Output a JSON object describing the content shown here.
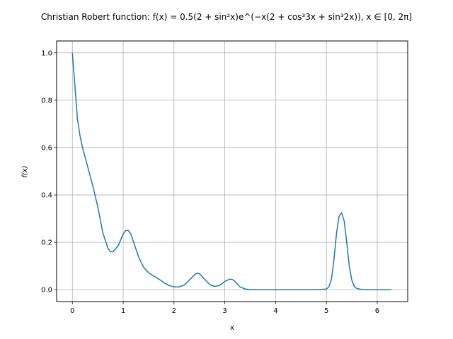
{
  "chart_data": {
    "type": "line",
    "title": "Christian Robert function: f(x) = 0.5(2 + sin²x)e^(−x(2 + cos³3x + sin³2x)),   x ∈ [0, 2π]",
    "xlabel": "x",
    "ylabel": "f(x)",
    "xlim": [
      -0.31,
      6.6
    ],
    "ylim": [
      -0.05,
      1.05
    ],
    "x_ticks": [
      0,
      1,
      2,
      3,
      4,
      5,
      6
    ],
    "x_tick_labels": [
      "0",
      "1",
      "2",
      "3",
      "4",
      "5",
      "6"
    ],
    "y_ticks": [
      0.0,
      0.2,
      0.4,
      0.6,
      0.8,
      1.0
    ],
    "y_tick_labels": [
      "0.0",
      "0.2",
      "0.4",
      "0.6",
      "0.8",
      "1.0"
    ],
    "grid": true,
    "legend": "none",
    "colors": {
      "line": "#1f77b4",
      "grid": "#b0b0b0",
      "axes": "#000000"
    },
    "series": [
      {
        "x": [
          0.0,
          0.05,
          0.1,
          0.15,
          0.2,
          0.3,
          0.4,
          0.5,
          0.6,
          0.7,
          0.75,
          0.8,
          0.9,
          1.0,
          1.05,
          1.1,
          1.15,
          1.2,
          1.3,
          1.4,
          1.5,
          1.6,
          1.7,
          1.8,
          1.9,
          2.0,
          2.1,
          2.2,
          2.3,
          2.4,
          2.45,
          2.5,
          2.6,
          2.7,
          2.8,
          2.9,
          3.0,
          3.1,
          3.15,
          3.2,
          3.3,
          3.4,
          3.5,
          3.7,
          4.0,
          4.5,
          4.8,
          5.0,
          5.05,
          5.1,
          5.15,
          5.2,
          5.25,
          5.3,
          5.35,
          5.4,
          5.45,
          5.5,
          5.55,
          5.6,
          5.7,
          5.8,
          6.0,
          6.28
        ],
        "y": [
          1.0,
          0.86,
          0.72,
          0.65,
          0.6,
          0.52,
          0.44,
          0.35,
          0.24,
          0.175,
          0.16,
          0.16,
          0.185,
          0.235,
          0.25,
          0.25,
          0.235,
          0.205,
          0.14,
          0.095,
          0.072,
          0.058,
          0.045,
          0.03,
          0.018,
          0.012,
          0.012,
          0.02,
          0.04,
          0.062,
          0.07,
          0.068,
          0.045,
          0.022,
          0.014,
          0.018,
          0.035,
          0.045,
          0.043,
          0.035,
          0.012,
          0.003,
          0.001,
          0.0,
          0.0,
          0.0,
          0.0,
          0.003,
          0.012,
          0.045,
          0.13,
          0.24,
          0.31,
          0.325,
          0.29,
          0.2,
          0.1,
          0.04,
          0.014,
          0.005,
          0.001,
          0.0,
          0.0,
          0.0
        ]
      }
    ]
  }
}
